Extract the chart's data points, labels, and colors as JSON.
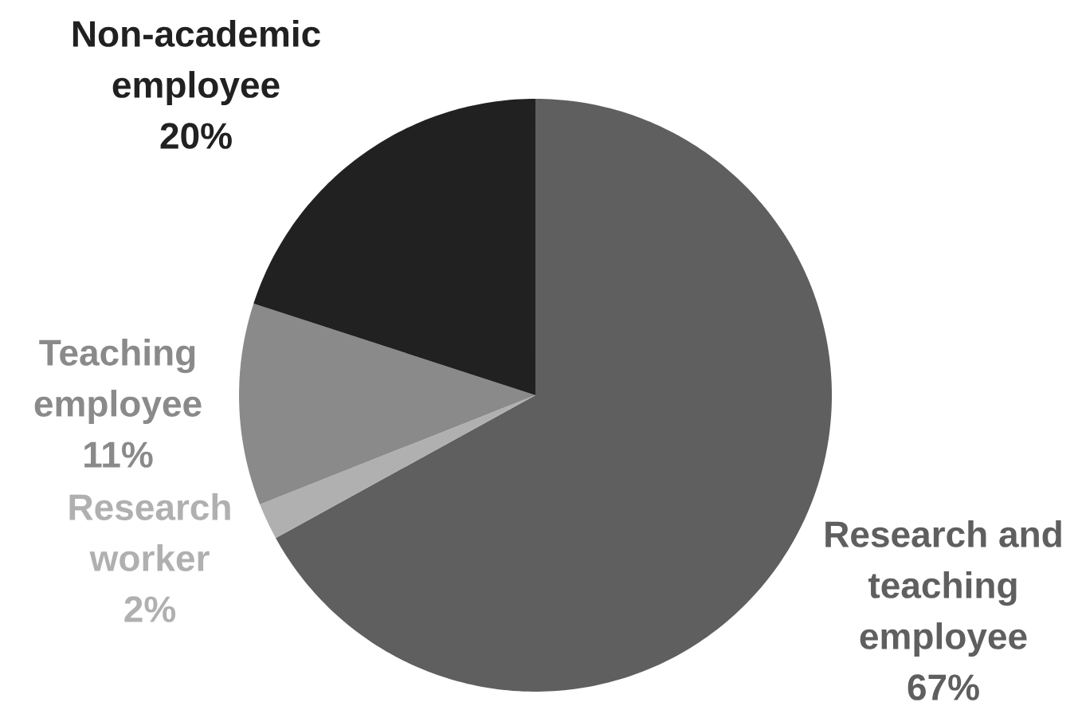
{
  "chart_data": {
    "type": "pie",
    "categories": [
      "Research and teaching employee",
      "Research worker",
      "Teaching employee",
      "Non-academic employee"
    ],
    "values": [
      67,
      2,
      11,
      20
    ],
    "colors": [
      "#5f5f5f",
      "#b0b0b0",
      "#8a8a8a",
      "#212121"
    ],
    "value_labels": [
      "67%",
      "2%",
      "11%",
      "20%"
    ]
  }
}
